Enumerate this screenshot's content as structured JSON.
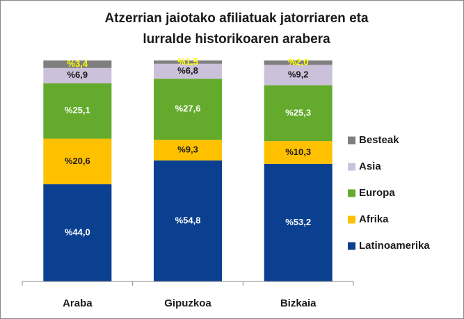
{
  "chart_data": {
    "type": "stacked_bar",
    "title": [
      "Atzerrian jaiotako afiliatuak jatorriaren eta",
      "lurralde historikoaren arabera"
    ],
    "categories": [
      "Araba",
      "Gipuzkoa",
      "Bizkaia"
    ],
    "ylim": [
      0,
      100
    ],
    "legend": "right",
    "series": [
      {
        "name": "Latinoamerika",
        "color": "#0b3f8f",
        "label_color": "#ffffff",
        "values": [
          44.0,
          54.8,
          53.2
        ],
        "value_labels": [
          "%44,0",
          "%54,8",
          "%53,2"
        ]
      },
      {
        "name": "Afrika",
        "color": "#ffc000",
        "label_color": "#1a1a1a",
        "values": [
          20.6,
          9.3,
          10.3
        ],
        "value_labels": [
          "%20,6",
          "%9,3",
          "%10,3"
        ]
      },
      {
        "name": "Europa",
        "color": "#64ab2d",
        "label_color": "#ffffff",
        "values": [
          25.1,
          27.6,
          25.3
        ],
        "value_labels": [
          "%25,1",
          "%27,6",
          "%25,3"
        ]
      },
      {
        "name": "Asia",
        "color": "#ccc1da",
        "label_color": "#1a1a1a",
        "values": [
          6.9,
          6.8,
          9.2
        ],
        "value_labels": [
          "%6,9",
          "%6,8",
          "%9,2"
        ]
      },
      {
        "name": "Besteak",
        "color": "#7f7f7f",
        "label_color": "#ffff00",
        "values": [
          3.4,
          1.5,
          2.0
        ],
        "value_labels": [
          "%3,4",
          "%1,5",
          "%2,0"
        ]
      }
    ]
  }
}
